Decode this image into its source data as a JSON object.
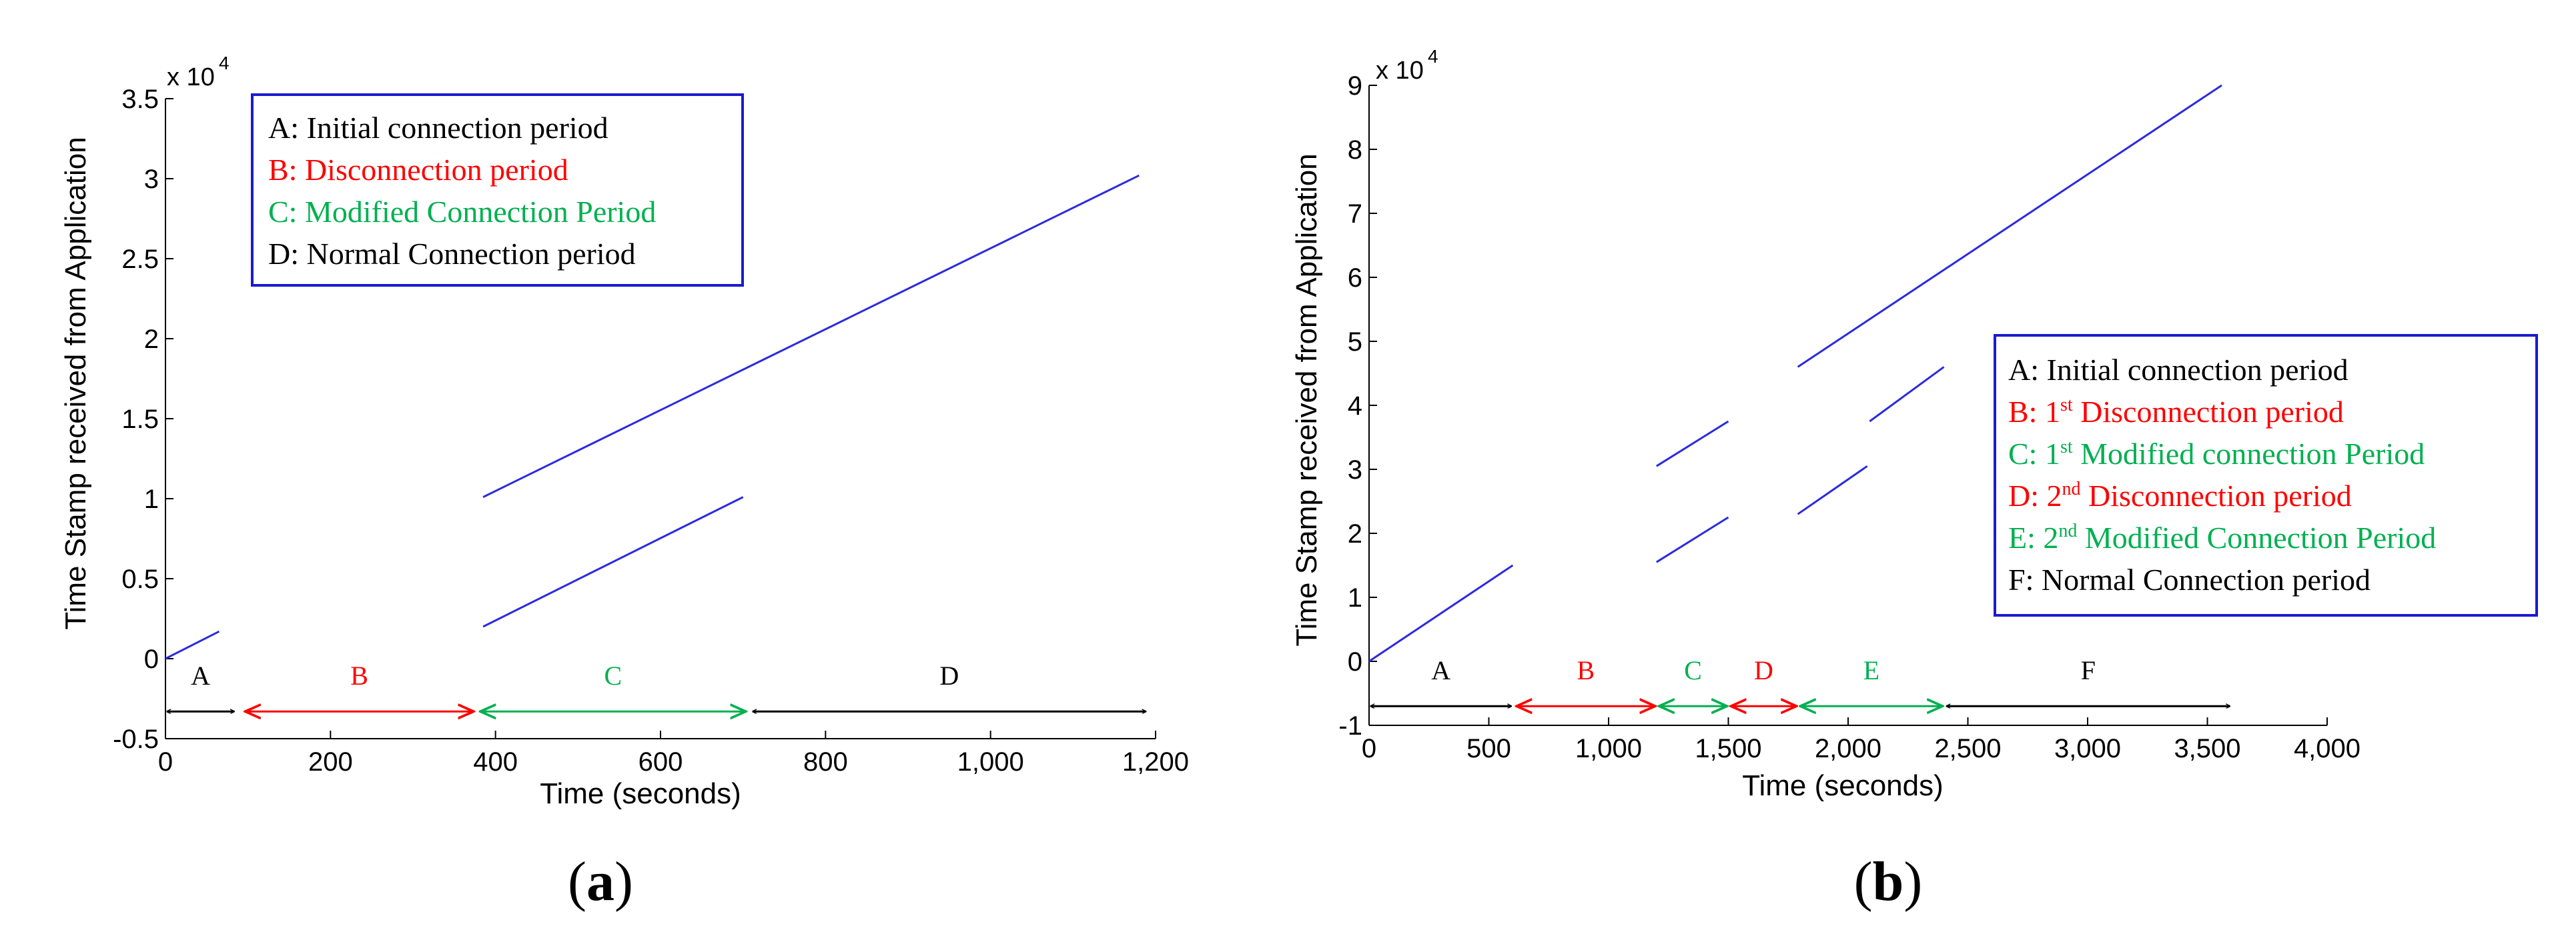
{
  "colors": {
    "series": "#2b2bdd",
    "legend_border": "#1a1ad0",
    "black": "#000000",
    "red": "#ff0000",
    "green": "#00b050"
  },
  "chart_data": [
    {
      "id": "a",
      "type": "line",
      "panel_label_open": "(",
      "panel_label_letter": "a",
      "panel_label_close": ")",
      "xlabel": "Time (seconds)",
      "ylabel": "Time Stamp received from Application",
      "y_multiplier": "x 10",
      "y_multiplier_exp": "4",
      "xlim": [
        0,
        1200
      ],
      "ylim": [
        -0.5,
        3.5
      ],
      "x_ticks": [
        0,
        200,
        400,
        600,
        800,
        1000,
        1200
      ],
      "x_tick_labels": [
        "0",
        "200",
        "400",
        "600",
        "800",
        "1,000",
        "1,200"
      ],
      "y_ticks": [
        -0.5,
        0,
        0.5,
        1,
        1.5,
        2,
        2.5,
        3,
        3.5
      ],
      "y_tick_labels": [
        "-0.5",
        "0",
        "0.5",
        "1",
        "1.5",
        "2",
        "2.5",
        "3",
        "3.5"
      ],
      "series": [
        {
          "x": [
            0,
            65
          ],
          "y": [
            0,
            0.17
          ]
        },
        {
          "x": [
            385,
            700
          ],
          "y": [
            0.2,
            1.01
          ]
        },
        {
          "x": [
            385,
            1180
          ],
          "y": [
            1.01,
            3.02
          ]
        }
      ],
      "periods": {
        "y": -0.33,
        "items": [
          {
            "label": "A",
            "start": 0,
            "end": 85,
            "color": "black"
          },
          {
            "label": "B",
            "start": 95,
            "end": 375,
            "color": "red"
          },
          {
            "label": "C",
            "start": 380,
            "end": 705,
            "color": "green"
          },
          {
            "label": "D",
            "start": 710,
            "end": 1190,
            "color": "black"
          }
        ]
      },
      "legend": {
        "placement": "top-left",
        "entries": [
          {
            "text": "A: Initial connection period",
            "color": "black"
          },
          {
            "text": "B: Disconnection period",
            "color": "red"
          },
          {
            "text": "C: Modified Connection Period",
            "color": "green"
          },
          {
            "text": "D: Normal Connection period",
            "color": "black"
          }
        ]
      }
    },
    {
      "id": "b",
      "type": "line",
      "panel_label_open": "(",
      "panel_label_letter": "b",
      "panel_label_close": ")",
      "xlabel": "Time (seconds)",
      "ylabel": "Time Stamp received from Application",
      "y_multiplier": "x 10",
      "y_multiplier_exp": "4",
      "xlim": [
        0,
        4000
      ],
      "ylim": [
        -1,
        9
      ],
      "x_ticks": [
        0,
        500,
        1000,
        1500,
        2000,
        2500,
        3000,
        3500,
        4000
      ],
      "x_tick_labels": [
        "0",
        "500",
        "1,000",
        "1,500",
        "2,000",
        "2,500",
        "3,000",
        "3,500",
        "4,000"
      ],
      "y_ticks": [
        -1,
        0,
        1,
        2,
        3,
        4,
        5,
        6,
        7,
        8,
        9
      ],
      "y_tick_labels": [
        "-1",
        "0",
        "1",
        "2",
        "3",
        "4",
        "5",
        "6",
        "7",
        "8",
        "9"
      ],
      "series": [
        {
          "x": [
            0,
            600
          ],
          "y": [
            0,
            1.5
          ]
        },
        {
          "x": [
            1200,
            1500
          ],
          "y": [
            1.55,
            2.25
          ]
        },
        {
          "x": [
            1200,
            1500
          ],
          "y": [
            3.05,
            3.75
          ]
        },
        {
          "x": [
            1790,
            2080
          ],
          "y": [
            2.3,
            3.05
          ]
        },
        {
          "x": [
            2090,
            2400
          ],
          "y": [
            3.75,
            4.6
          ]
        },
        {
          "x": [
            1790,
            3560
          ],
          "y": [
            4.6,
            9.0
          ]
        }
      ],
      "periods": {
        "y": -0.7,
        "items": [
          {
            "label": "A",
            "start": 0,
            "end": 600,
            "color": "black"
          },
          {
            "label": "B",
            "start": 610,
            "end": 1200,
            "color": "red"
          },
          {
            "label": "C",
            "start": 1205,
            "end": 1500,
            "color": "green"
          },
          {
            "label": "D",
            "start": 1505,
            "end": 1790,
            "color": "red"
          },
          {
            "label": "E",
            "start": 1795,
            "end": 2400,
            "color": "green"
          },
          {
            "label": "F",
            "start": 2405,
            "end": 3600,
            "color": "black"
          }
        ]
      },
      "legend": {
        "placement": "right",
        "entries": [
          {
            "prefix": "A: Initial connection period",
            "sup": "",
            "suffix": "",
            "color": "black"
          },
          {
            "prefix": "B: 1",
            "sup": "st",
            "suffix": " Disconnection period",
            "color": "red"
          },
          {
            "prefix": "C: 1",
            "sup": "st",
            "suffix": " Modified connection Period",
            "color": "green"
          },
          {
            "prefix": "D: 2",
            "sup": "nd",
            "suffix": " Disconnection period",
            "color": "red"
          },
          {
            "prefix": "E: 2",
            "sup": "nd",
            "suffix": " Modified Connection Period",
            "color": "green"
          },
          {
            "prefix": "F:  Normal Connection period",
            "sup": "",
            "suffix": "",
            "color": "black"
          }
        ]
      }
    }
  ]
}
